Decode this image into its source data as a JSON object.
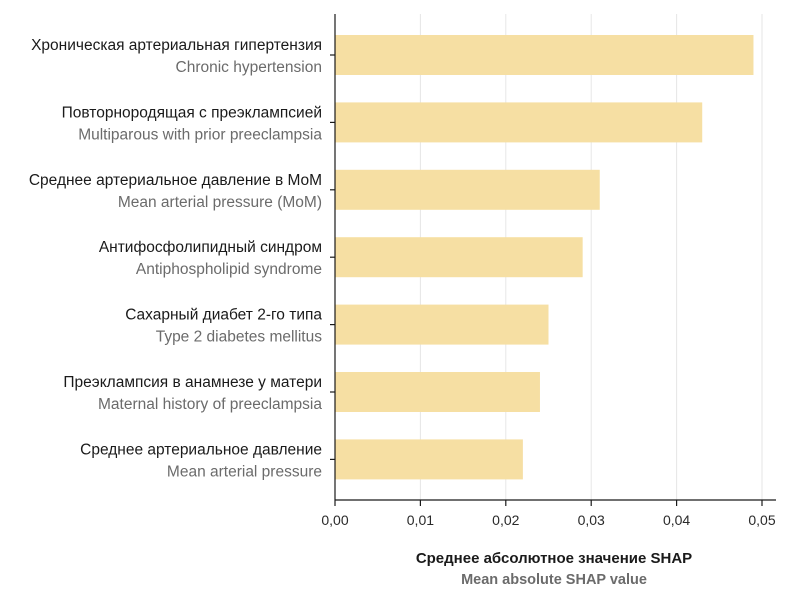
{
  "chart_data": {
    "type": "bar",
    "orientation": "horizontal",
    "categories": [
      {
        "ru": "Хроническая артериальная гипертензия",
        "en": "Chronic hypertension"
      },
      {
        "ru": "Повторнородящая с преэклампсией",
        "en": "Multiparous with prior preeclampsia"
      },
      {
        "ru": "Среднее артериальное давление в MoM",
        "en": "Mean arterial pressure (MoM)"
      },
      {
        "ru": "Антифосфолипидный синдром",
        "en": "Antiphospholipid syndrome"
      },
      {
        "ru": "Сахарный диабет 2-го типа",
        "en": "Type 2 diabetes mellitus"
      },
      {
        "ru": "Преэклампсия в анамнезе у матери",
        "en": "Maternal history of preeclampsia"
      },
      {
        "ru": "Среднее артериальное давление",
        "en": "Mean arterial pressure"
      }
    ],
    "values": [
      0.049,
      0.043,
      0.031,
      0.029,
      0.025,
      0.024,
      0.022
    ],
    "xlim": [
      0,
      0.05
    ],
    "xticks": [
      "0,00",
      "0,01",
      "0,02",
      "0,03",
      "0,04",
      "0,05"
    ],
    "xlabel": {
      "ru": "Среднее абсолютное значение SHAP",
      "en": "Mean absolute SHAP value"
    },
    "grid": "vertical",
    "bar_color": "#f6dfa3",
    "grid_color": "#e6e6e6"
  }
}
